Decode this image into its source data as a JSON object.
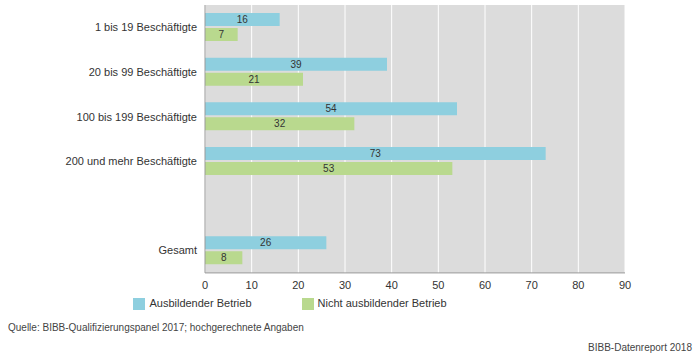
{
  "chart_data": {
    "type": "bar",
    "orientation": "horizontal",
    "categories": [
      "1 bis 19 Beschäftigte",
      "20 bis 99 Beschäftigte",
      "100 bis 199 Beschäftigte",
      "200 und mehr Beschäftigte",
      null,
      "Gesamt"
    ],
    "series": [
      {
        "name": "Ausbildender Betrieb",
        "color": "#8ecfdf",
        "values": [
          16,
          39,
          54,
          73,
          null,
          26
        ]
      },
      {
        "name": "Nicht ausbildender Betrieb",
        "color": "#b9d98e",
        "values": [
          7,
          21,
          32,
          53,
          null,
          8
        ]
      }
    ],
    "xlim": [
      0,
      90
    ],
    "xticks": [
      0,
      10,
      20,
      30,
      40,
      50,
      60,
      70,
      80,
      90
    ],
    "grid": true,
    "legend": "bottom",
    "data_labels": true,
    "annotations": [
      "Quelle: BIBB-Qualifizierungspanel 2017; hochgerechnete Angaben",
      "BIBB-Datenreport 2018"
    ]
  }
}
